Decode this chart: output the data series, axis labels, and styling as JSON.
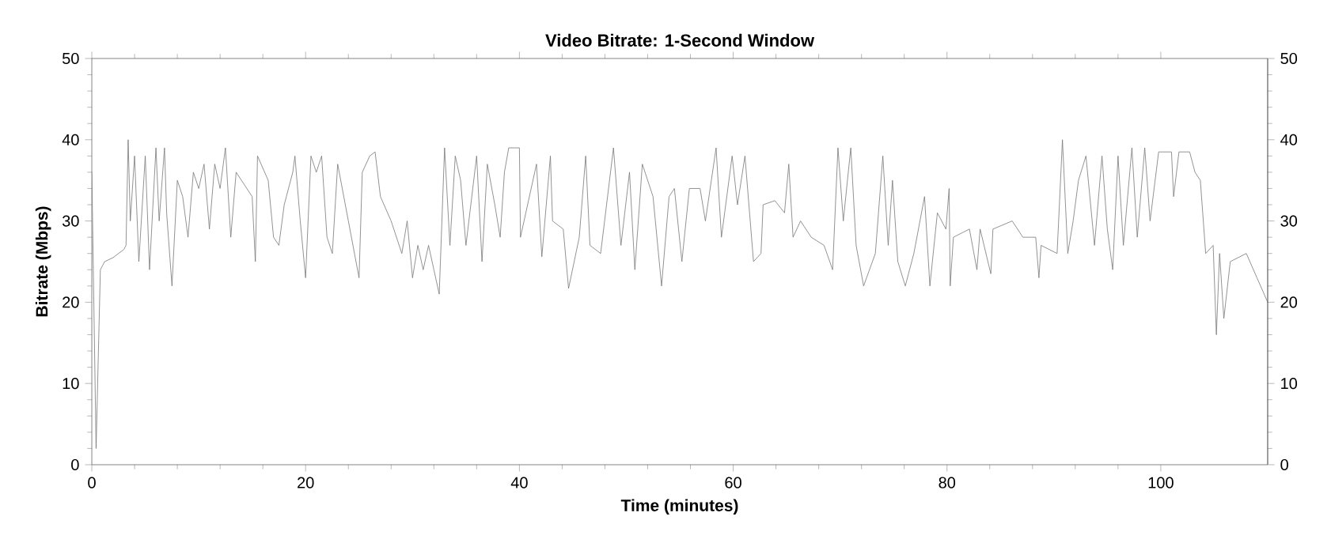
{
  "chart_data": {
    "type": "line",
    "title": "Video Bitrate: 1-Second Window",
    "xlabel": "Time (minutes)",
    "ylabel": "Bitrate (Mbps)",
    "xlim": [
      0,
      110
    ],
    "xticks": [
      0,
      20,
      40,
      60,
      80,
      100
    ],
    "ylim": [
      0,
      50
    ],
    "yticks": [
      0,
      10,
      20,
      30,
      40,
      50
    ],
    "y2lim": [
      0,
      50
    ],
    "y2ticks": [
      0,
      10,
      20,
      30,
      40,
      50
    ],
    "series": [
      {
        "color": "#777777",
        "x": [
          0,
          0.4,
          0.8,
          1.2,
          2,
          3,
          3.2,
          3.4,
          3.6,
          4,
          4.4,
          5,
          5.4,
          6,
          6.3,
          6.8,
          7,
          7.5,
          8,
          8.5,
          9,
          9.5,
          10,
          10.5,
          11,
          11.5,
          12,
          12.5,
          13,
          13.5,
          14,
          15,
          15.3,
          15.5,
          16.5,
          17,
          17.5,
          18,
          18.8,
          19,
          19.5,
          20,
          20.5,
          21,
          21.5,
          22,
          22.5,
          23,
          24,
          25,
          25.3,
          26,
          26.5,
          27,
          28,
          29,
          29.5,
          30,
          30.5,
          31,
          31.5,
          32,
          32.5,
          33,
          33.5,
          34,
          34.5,
          35,
          36,
          36.5,
          37,
          37.7,
          38.2,
          38.6,
          39,
          40,
          40.1,
          41.6,
          42.1,
          42.9,
          43.1,
          44.1,
          44.6,
          45.6,
          46.2,
          46.6,
          47.6,
          48.8,
          49.5,
          50.3,
          50.8,
          51.5,
          52.5,
          53.3,
          54,
          54.5,
          55.2,
          55.9,
          56.9,
          57.4,
          58.4,
          58.9,
          59.9,
          60.4,
          61.1,
          61.9,
          62.6,
          62.8,
          63.9,
          64.8,
          65.2,
          65.6,
          66.3,
          67.3,
          68.5,
          69.3,
          69.8,
          70.3,
          71,
          71.5,
          72.2,
          73.3,
          74,
          74.5,
          74.9,
          75.4,
          76.1,
          76.9,
          77.9,
          78.4,
          79.1,
          79.9,
          80.2,
          80.3,
          80.6,
          82.1,
          82.8,
          83.1,
          84.1,
          84.3,
          86.1,
          87.1,
          88.3,
          88.6,
          88.8,
          90.3,
          90.8,
          91.3,
          91.8,
          92.3,
          93,
          93.8,
          94.5,
          95,
          95.5,
          96,
          96.5,
          97.3,
          97.8,
          98.5,
          99,
          99.8,
          101,
          101.2,
          101.7,
          102.7,
          103.2,
          103.7,
          104.2,
          104.9,
          105.2,
          105.5,
          105.9,
          106.5,
          108,
          109,
          110
        ],
        "values": [
          36,
          2,
          24,
          25,
          25.5,
          26.5,
          27,
          40,
          30,
          38,
          25,
          38,
          24,
          39,
          30,
          39,
          31,
          22,
          35,
          33,
          28,
          36,
          34,
          37,
          29,
          37,
          34,
          39,
          28,
          36,
          35,
          33,
          25,
          38,
          35,
          28,
          27,
          32,
          36,
          38,
          30,
          23,
          38,
          36,
          38,
          28,
          26,
          37,
          30,
          23,
          36,
          38,
          38.5,
          33,
          30,
          26,
          30,
          23,
          27,
          24,
          27,
          24,
          21,
          39,
          27,
          38,
          35,
          27,
          38,
          25,
          37,
          32,
          28,
          36,
          39,
          39,
          28,
          37,
          25.6,
          38,
          30,
          29,
          21.7,
          28,
          38,
          27,
          26,
          39,
          27,
          36,
          24,
          37,
          33,
          22,
          33,
          34,
          25,
          34,
          34,
          30,
          39,
          28,
          38,
          32,
          38,
          25,
          26,
          32,
          32.5,
          31,
          37,
          28,
          30,
          28,
          27,
          24,
          39,
          30,
          39,
          27,
          22,
          26,
          38,
          27,
          35,
          25,
          22,
          26,
          33,
          22,
          31,
          29,
          34,
          22,
          28,
          29,
          24,
          29,
          23.5,
          29,
          30,
          28,
          28,
          23,
          27,
          26,
          40,
          26,
          30,
          35,
          38,
          27,
          38,
          29,
          24,
          38,
          27,
          39,
          28,
          39,
          30,
          38.5,
          38.5,
          33,
          38.5,
          38.5,
          36,
          35,
          26,
          27,
          16,
          26,
          18,
          25,
          26,
          23,
          20
        ]
      }
    ]
  }
}
